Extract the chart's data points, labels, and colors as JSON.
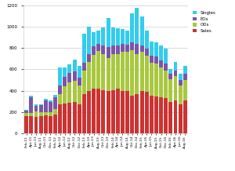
{
  "categories": [
    "Feb-11",
    "Apr-11",
    "Jun-11",
    "Aug-11",
    "Oct-11",
    "Dec-11",
    "Feb-12",
    "Apr-12",
    "Jun-12",
    "Aug-12",
    "Oct-12",
    "Dec-12",
    "Feb-13",
    "Apr-13",
    "Jun-13",
    "Aug-13",
    "Oct-13",
    "Dec-13",
    "Feb-14",
    "Apr-14",
    "Jun-14",
    "Aug-14",
    "Oct-14",
    "Dec-14",
    "Feb-15",
    "Apr-15",
    "Jun-15",
    "Aug-15",
    "Oct-15",
    "Dec-15",
    "Feb-16",
    "Apr-16",
    "Jun-16",
    "Aug-16"
  ],
  "sales": [
    160,
    160,
    155,
    165,
    170,
    165,
    175,
    270,
    280,
    285,
    295,
    275,
    370,
    400,
    415,
    420,
    405,
    395,
    405,
    415,
    400,
    400,
    355,
    365,
    400,
    390,
    350,
    345,
    335,
    330,
    295,
    305,
    270,
    310
  ],
  "ods": [
    30,
    30,
    50,
    35,
    30,
    30,
    55,
    100,
    160,
    190,
    200,
    175,
    220,
    270,
    320,
    350,
    340,
    310,
    340,
    330,
    360,
    360,
    420,
    380,
    360,
    340,
    310,
    310,
    280,
    260,
    210,
    230,
    180,
    190
  ],
  "eos": [
    20,
    145,
    55,
    65,
    105,
    100,
    110,
    75,
    90,
    90,
    85,
    75,
    70,
    75,
    80,
    70,
    80,
    100,
    80,
    75,
    75,
    70,
    80,
    90,
    65,
    65,
    70,
    65,
    65,
    60,
    55,
    55,
    50,
    60
  ],
  "singles": [
    10,
    15,
    10,
    10,
    15,
    15,
    20,
    175,
    85,
    80,
    110,
    105,
    270,
    255,
    130,
    120,
    165,
    275,
    165,
    165,
    140,
    135,
    270,
    340,
    270,
    165,
    130,
    130,
    145,
    145,
    45,
    75,
    55,
    75
  ],
  "colors": {
    "singles": "#33CCEE",
    "eos": "#7B55A8",
    "ods": "#A8C840",
    "sales": "#CC3333"
  },
  "ylim": [
    0,
    1200
  ],
  "yticks": [
    0,
    200,
    400,
    600,
    800,
    1000,
    1200
  ],
  "bg_color": "#FFFFFF",
  "grid_color": "#CCCCCC"
}
